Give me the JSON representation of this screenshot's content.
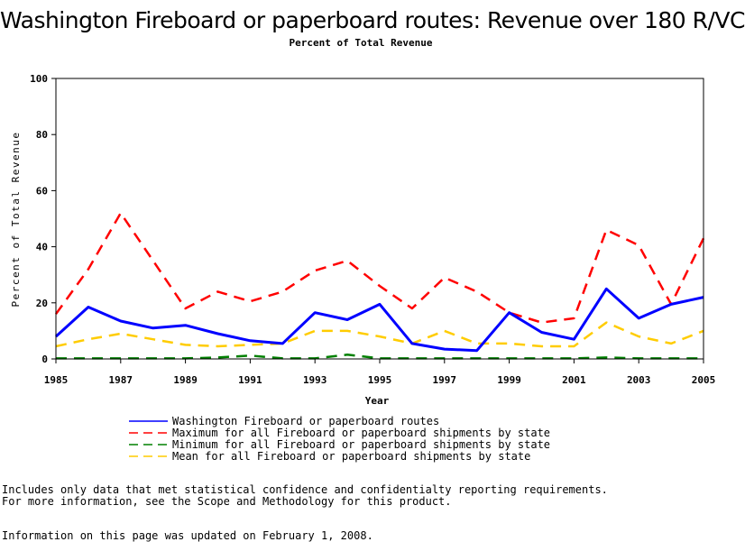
{
  "chart_data": {
    "type": "line",
    "title": "Washington Fireboard or paperboard routes: Revenue over 180 R/VC",
    "subtitle": "Percent of Total Revenue",
    "xlabel": "Year",
    "ylabel": "Percent of Total Revenue",
    "xlim": [
      1985,
      2005
    ],
    "ylim": [
      0,
      100
    ],
    "xticks": [
      1985,
      1987,
      1989,
      1991,
      1993,
      1995,
      1997,
      1999,
      2001,
      2003,
      2005
    ],
    "yticks": [
      0,
      20,
      40,
      60,
      80,
      100
    ],
    "x": [
      1985,
      1986,
      1987,
      1988,
      1989,
      1990,
      1991,
      1992,
      1993,
      1994,
      1995,
      1996,
      1997,
      1998,
      1999,
      2000,
      2001,
      2002,
      2003,
      2004,
      2005
    ],
    "series": [
      {
        "name": "Washington Fireboard or paperboard routes",
        "color": "#0000ff",
        "dash": "solid",
        "values": [
          8,
          18.5,
          13.5,
          11,
          12,
          9,
          6.5,
          5.5,
          16.5,
          14,
          19.5,
          5.5,
          3.5,
          3,
          16.5,
          9.5,
          7,
          25,
          14.5,
          19.5,
          22
        ]
      },
      {
        "name": "Maximum for all Fireboard or paperboard shipments by state",
        "color": "#ff0000",
        "dash": "dashed",
        "values": [
          16,
          32,
          52,
          35,
          18,
          24,
          20.5,
          24,
          31.5,
          35,
          26,
          18,
          29,
          24,
          16.5,
          13,
          14.5,
          46,
          40.5,
          19.5,
          43
        ]
      },
      {
        "name": "Minimum for all Fireboard or paperboard shipments by state",
        "color": "#008000",
        "dash": "dashed",
        "values": [
          0.2,
          0.2,
          0.2,
          0.2,
          0.2,
          0.5,
          1.2,
          0.2,
          0.2,
          1.5,
          0.2,
          0.2,
          0.2,
          0.2,
          0.2,
          0.2,
          0.2,
          0.5,
          0.2,
          0.2,
          0.2
        ]
      },
      {
        "name": "Mean for all Fireboard or paperboard shipments by state",
        "color": "#ffcc00",
        "dash": "dashed",
        "values": [
          4.5,
          7,
          9,
          7,
          5,
          4.5,
          5,
          5.5,
          10,
          10,
          8,
          5.5,
          10,
          5.5,
          5.5,
          4.5,
          4.5,
          13,
          8,
          5.5,
          10
        ]
      }
    ],
    "legend_position": "bottom"
  },
  "notes": {
    "line1": "Includes only data that met statistical confidence and confidentialty reporting requirements.",
    "line2": "For more information, see the Scope and Methodology for this product.",
    "line3": "Information on this page was updated on February 1, 2008."
  }
}
